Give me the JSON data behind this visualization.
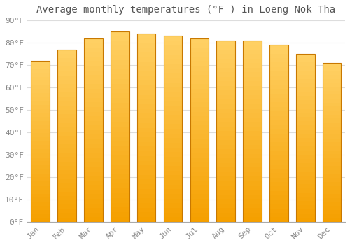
{
  "title": "Average monthly temperatures (°F ) in Loeng Nok Tha",
  "months": [
    "Jan",
    "Feb",
    "Mar",
    "Apr",
    "May",
    "Jun",
    "Jul",
    "Aug",
    "Sep",
    "Oct",
    "Nov",
    "Dec"
  ],
  "values": [
    72,
    77,
    82,
    85,
    84,
    83,
    82,
    81,
    81,
    79,
    75,
    71
  ],
  "ylim": [
    0,
    90
  ],
  "yticks": [
    0,
    10,
    20,
    30,
    40,
    50,
    60,
    70,
    80,
    90
  ],
  "ytick_labels": [
    "0°F",
    "10°F",
    "20°F",
    "30°F",
    "40°F",
    "50°F",
    "60°F",
    "70°F",
    "80°F",
    "90°F"
  ],
  "bar_color_light": "#FFD166",
  "bar_color_dark": "#F5A000",
  "bar_edge_color": "#C87800",
  "background_color": "#FFFFFF",
  "grid_color": "#DDDDDD",
  "title_fontsize": 10,
  "tick_fontsize": 8,
  "bar_width": 0.7
}
